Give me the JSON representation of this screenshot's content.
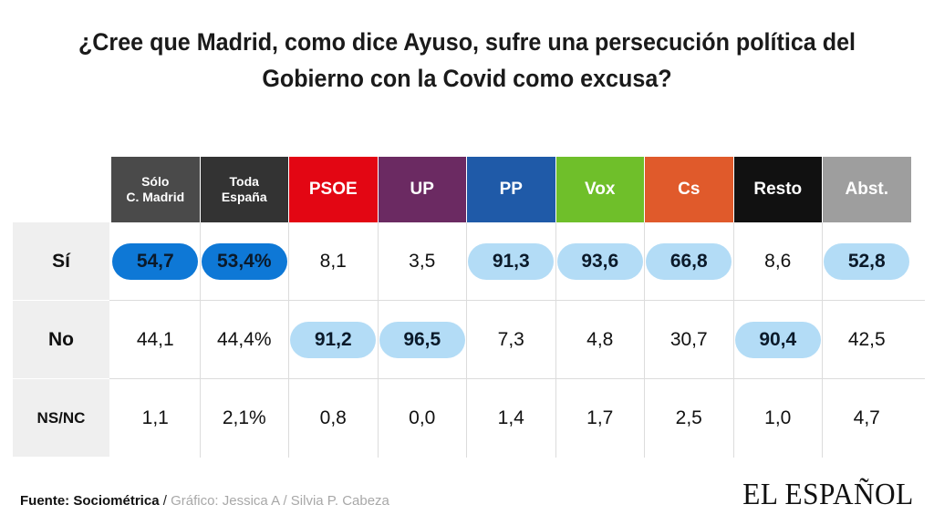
{
  "title": "¿Cree que Madrid, como dice Ayuso, sufre una persecución política del Gobierno con la Covid como excusa?",
  "chart_data": {
    "type": "table",
    "columns": [
      {
        "label": "Sólo\nC. Madrid",
        "color": "#4a4a4a"
      },
      {
        "label": "Toda\nEspaña",
        "color": "#333333"
      },
      {
        "label": "PSOE",
        "color": "#e30613"
      },
      {
        "label": "UP",
        "color": "#6b2a62"
      },
      {
        "label": "PP",
        "color": "#1f5aa8"
      },
      {
        "label": "Vox",
        "color": "#6fbf2a"
      },
      {
        "label": "Cs",
        "color": "#e05a2b"
      },
      {
        "label": "Resto",
        "color": "#111111"
      },
      {
        "label": "Abst.",
        "color": "#9e9e9e"
      }
    ],
    "rows": [
      {
        "label": "Sí",
        "values": [
          "54,7",
          "53,4%",
          "8,1",
          "3,5",
          "91,3",
          "93,6",
          "66,8",
          "8,6",
          "52,8"
        ],
        "highlight": [
          "dark",
          "dark",
          "",
          "",
          "light",
          "light",
          "light",
          "",
          "light"
        ]
      },
      {
        "label": "No",
        "values": [
          "44,1",
          "44,4%",
          "91,2",
          "96,5",
          "7,3",
          "4,8",
          "30,7",
          "90,4",
          "42,5"
        ],
        "highlight": [
          "",
          "",
          "light",
          "light",
          "",
          "",
          "",
          "light",
          ""
        ]
      },
      {
        "label": "NS/NC",
        "values": [
          "1,1",
          "2,1%",
          "0,8",
          "0,0",
          "1,4",
          "1,7",
          "2,5",
          "1,0",
          "4,7"
        ],
        "highlight": [
          "",
          "",
          "",
          "",
          "",
          "",
          "",
          "",
          ""
        ]
      }
    ],
    "highlight_colors": {
      "dark": "#0e78d6",
      "light": "#b3dcf6"
    }
  },
  "footer": {
    "source_label": "Fuente: Sociométrica",
    "separator": " / ",
    "credit": "Gráfico: Jessica A / Silvia P. Cabeza"
  },
  "brand": "EL ESPAÑOL"
}
